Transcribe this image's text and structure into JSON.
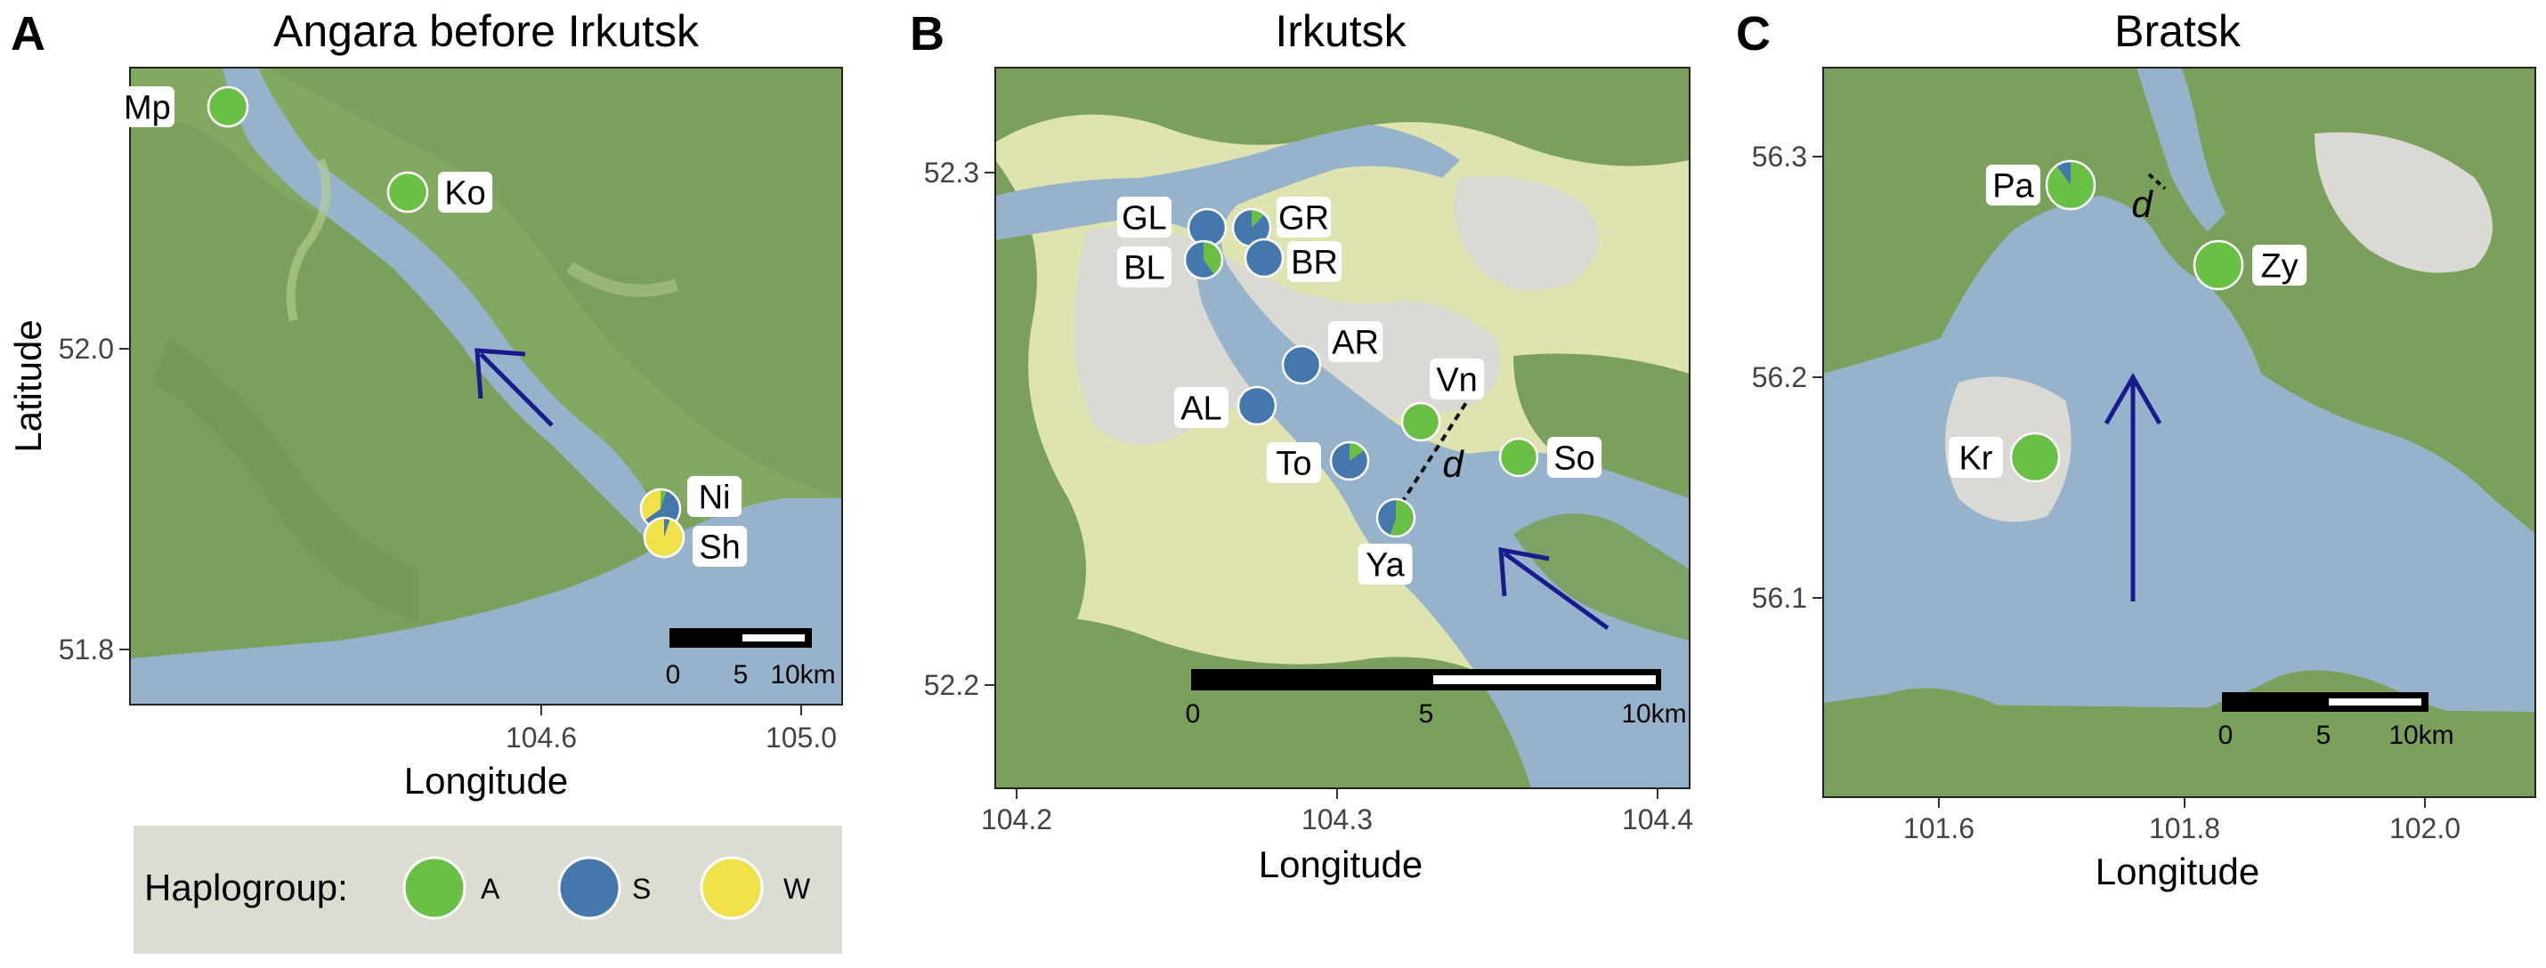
{
  "panels": [
    {
      "letter": "A",
      "title": "Angara before Irkutsk",
      "xlabel": "Longitude",
      "ylabel": "Latitude",
      "xticks": [
        "104.6",
        "105.0"
      ],
      "yticks": [
        "52.0",
        "51.8"
      ],
      "scalebar": [
        "0",
        "5",
        "10km"
      ],
      "sites": [
        {
          "code": "Mp",
          "A": 1.0,
          "S": 0.0,
          "W": 0.0
        },
        {
          "code": "Ko",
          "A": 1.0,
          "S": 0.0,
          "W": 0.0
        },
        {
          "code": "Ni",
          "A": 0.05,
          "S": 0.6,
          "W": 0.35
        },
        {
          "code": "Sh",
          "A": 0.0,
          "S": 0.05,
          "W": 0.95
        }
      ]
    },
    {
      "letter": "B",
      "title": "Irkutsk",
      "xlabel": "Longitude",
      "xticks": [
        "104.2",
        "104.3",
        "104.4"
      ],
      "yticks": [
        "52.3",
        "52.2"
      ],
      "scalebar": [
        "0",
        "5",
        "10km"
      ],
      "distance_label": "d",
      "sites": [
        {
          "code": "GL",
          "A": 0.0,
          "S": 1.0,
          "W": 0.0
        },
        {
          "code": "GR",
          "A": 0.12,
          "S": 0.88,
          "W": 0.0
        },
        {
          "code": "BL",
          "A": 0.4,
          "S": 0.6,
          "W": 0.0
        },
        {
          "code": "BR",
          "A": 0.0,
          "S": 1.0,
          "W": 0.0
        },
        {
          "code": "AR",
          "A": 0.0,
          "S": 1.0,
          "W": 0.0
        },
        {
          "code": "AL",
          "A": 0.0,
          "S": 1.0,
          "W": 0.0
        },
        {
          "code": "Vn",
          "A": 1.0,
          "S": 0.0,
          "W": 0.0
        },
        {
          "code": "To",
          "A": 0.15,
          "S": 0.85,
          "W": 0.0
        },
        {
          "code": "So",
          "A": 1.0,
          "S": 0.0,
          "W": 0.0
        },
        {
          "code": "Ya",
          "A": 0.55,
          "S": 0.45,
          "W": 0.0
        }
      ]
    },
    {
      "letter": "C",
      "title": "Bratsk",
      "xlabel": "Longitude",
      "xticks": [
        "101.6",
        "101.8",
        "102.0"
      ],
      "yticks": [
        "56.3",
        "56.2",
        "56.1"
      ],
      "scalebar": [
        "0",
        "5",
        "10km"
      ],
      "distance_label": "d",
      "sites": [
        {
          "code": "Pa",
          "A": 0.9,
          "S": 0.1,
          "W": 0.0
        },
        {
          "code": "Zy",
          "A": 1.0,
          "S": 0.0,
          "W": 0.0
        },
        {
          "code": "Kr",
          "A": 1.0,
          "S": 0.0,
          "W": 0.0
        }
      ]
    }
  ],
  "legend": {
    "title": "Haplogroup:",
    "items": [
      {
        "label": "A",
        "color": "#6abf45"
      },
      {
        "label": "S",
        "color": "#4478ad"
      },
      {
        "label": "W",
        "color": "#f0e04a"
      }
    ]
  },
  "colors": {
    "water": "#97b3cc",
    "forest": "#7aa05b",
    "urban": "#dad9d4",
    "farmland": "#dfe3b0",
    "arrow": "#1a1a8c"
  }
}
